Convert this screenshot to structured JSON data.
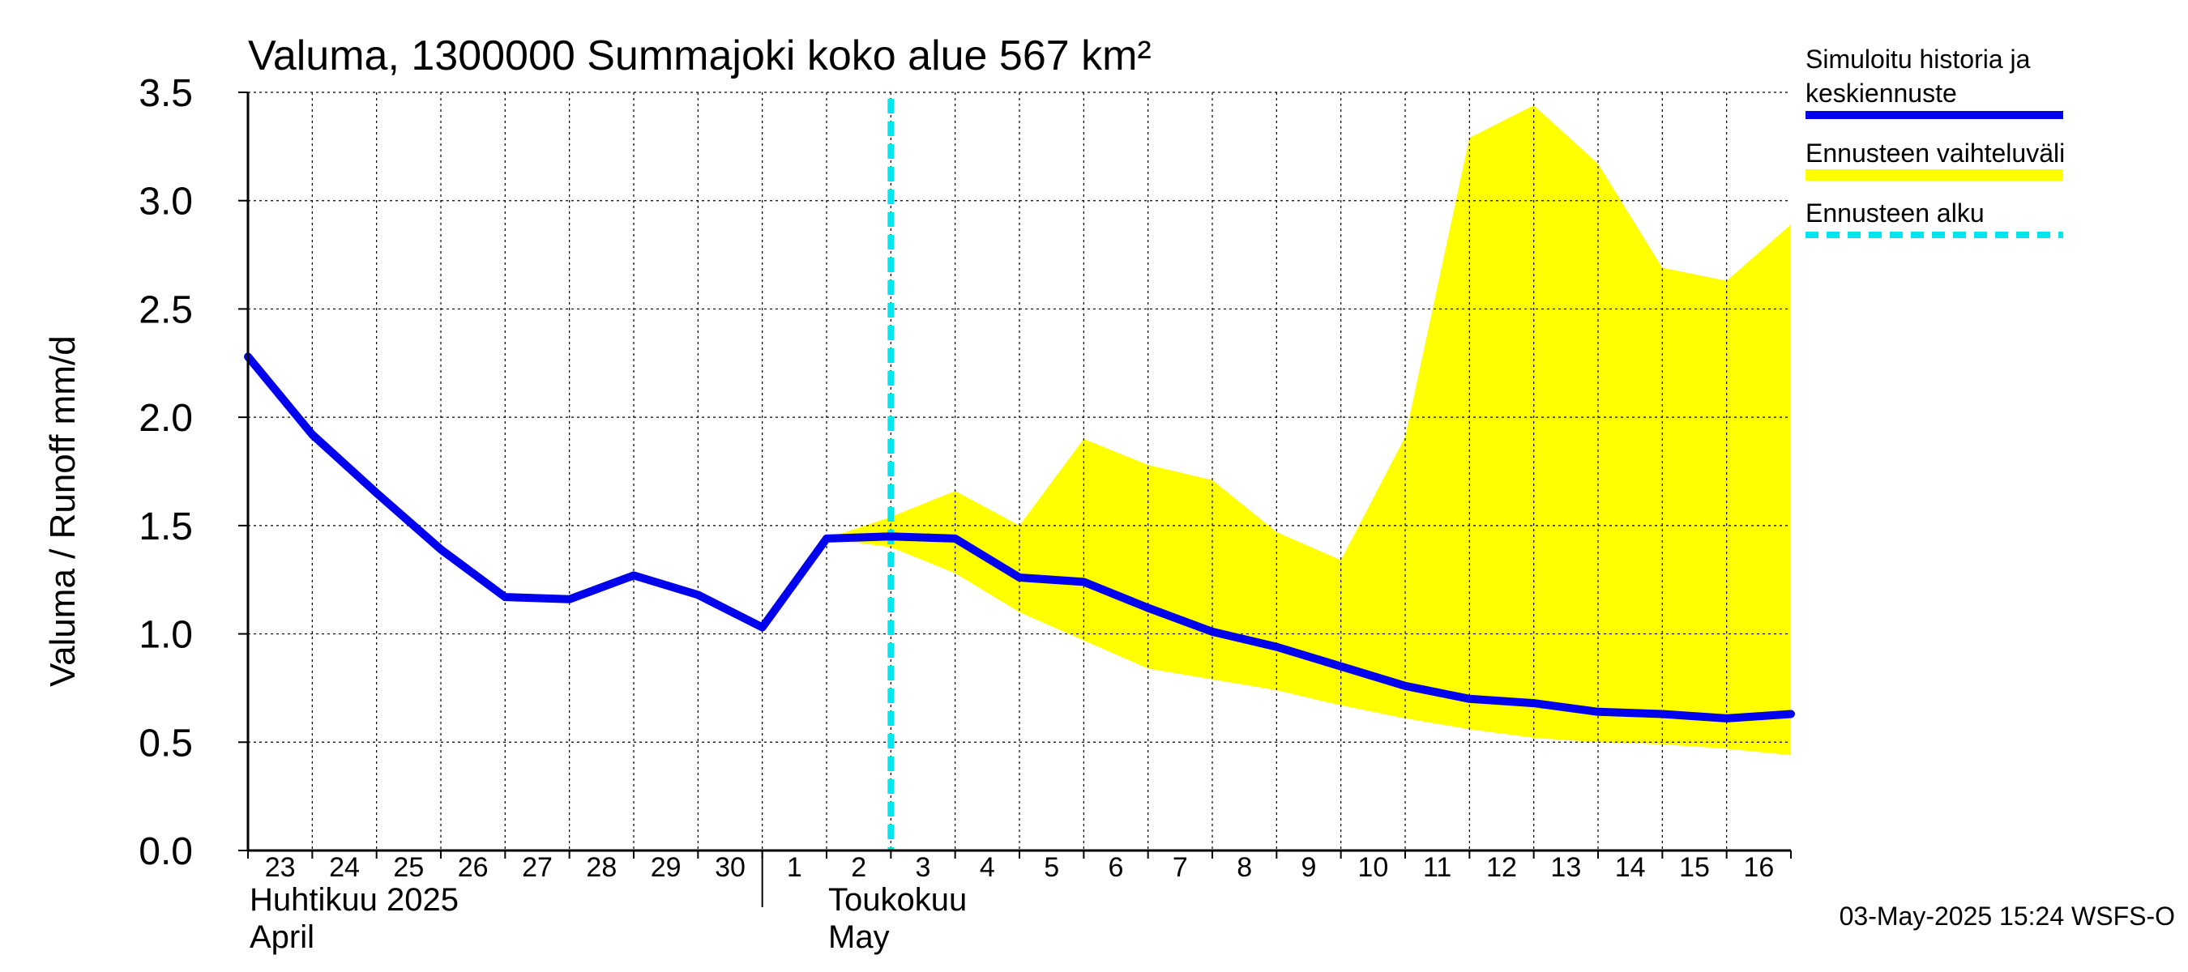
{
  "chart_data": {
    "type": "area",
    "title": "Valuma, 1300000 Summajoki koko alue 567 km²",
    "ylabel": "Valuma / Runoff    mm/d",
    "ylim": [
      0,
      3.5
    ],
    "yticks": [
      "0.0",
      "0.5",
      "1.0",
      "1.5",
      "2.0",
      "2.5",
      "3.0",
      "3.5"
    ],
    "x_start": "2025-04-23",
    "x_end": "2025-05-17",
    "xtick_labels": [
      "23",
      "24",
      "25",
      "26",
      "27",
      "28",
      "29",
      "30",
      "1",
      "2",
      "3",
      "4",
      "5",
      "6",
      "7",
      "8",
      "9",
      "10",
      "11",
      "12",
      "13",
      "14",
      "15",
      "16"
    ],
    "month_labels": [
      {
        "date": "2025-04-23",
        "fi": "Huhtikuu  2025",
        "en": "April"
      },
      {
        "date": "2025-05-02",
        "fi": "Toukokuu",
        "en": "May"
      }
    ],
    "forecast_start": "2025-05-03",
    "series": [
      {
        "name": "Simuloitu historia ja keskiennuste",
        "color": "#0000ee",
        "x": [
          "2025-04-23",
          "2025-04-24",
          "2025-04-25",
          "2025-04-26",
          "2025-04-27",
          "2025-04-28",
          "2025-04-29",
          "2025-04-30",
          "2025-05-01",
          "2025-05-02",
          "2025-05-03",
          "2025-05-04",
          "2025-05-05",
          "2025-05-06",
          "2025-05-07",
          "2025-05-08",
          "2025-05-09",
          "2025-05-10",
          "2025-05-11",
          "2025-05-12",
          "2025-05-13",
          "2025-05-14",
          "2025-05-15",
          "2025-05-16",
          "2025-05-17"
        ],
        "values": [
          2.28,
          1.92,
          1.65,
          1.39,
          1.17,
          1.16,
          1.27,
          1.18,
          1.03,
          1.44,
          1.45,
          1.44,
          1.26,
          1.24,
          1.12,
          1.01,
          0.94,
          0.85,
          0.76,
          0.7,
          0.68,
          0.64,
          0.63,
          0.61,
          0.63
        ]
      },
      {
        "name": "Ennusteen vaihteluväli",
        "color": "#ffff00",
        "x": [
          "2025-05-02",
          "2025-05-03",
          "2025-05-04",
          "2025-05-05",
          "2025-05-06",
          "2025-05-07",
          "2025-05-08",
          "2025-05-09",
          "2025-05-10",
          "2025-05-11",
          "2025-05-12",
          "2025-05-13",
          "2025-05-14",
          "2025-05-15",
          "2025-05-16",
          "2025-05-17"
        ],
        "upper": [
          1.44,
          1.54,
          1.66,
          1.5,
          1.9,
          1.78,
          1.71,
          1.47,
          1.34,
          1.91,
          3.29,
          3.44,
          3.17,
          2.69,
          2.63,
          2.89
        ],
        "lower": [
          1.44,
          1.4,
          1.28,
          1.1,
          0.97,
          0.84,
          0.79,
          0.74,
          0.67,
          0.61,
          0.56,
          0.52,
          0.5,
          0.49,
          0.47,
          0.44
        ]
      },
      {
        "name": "Ennusteen alku",
        "color": "#00e5ee"
      }
    ],
    "legend_placement": "right",
    "grid": true,
    "timestamp": "03-May-2025 15:24 WSFS-O"
  }
}
